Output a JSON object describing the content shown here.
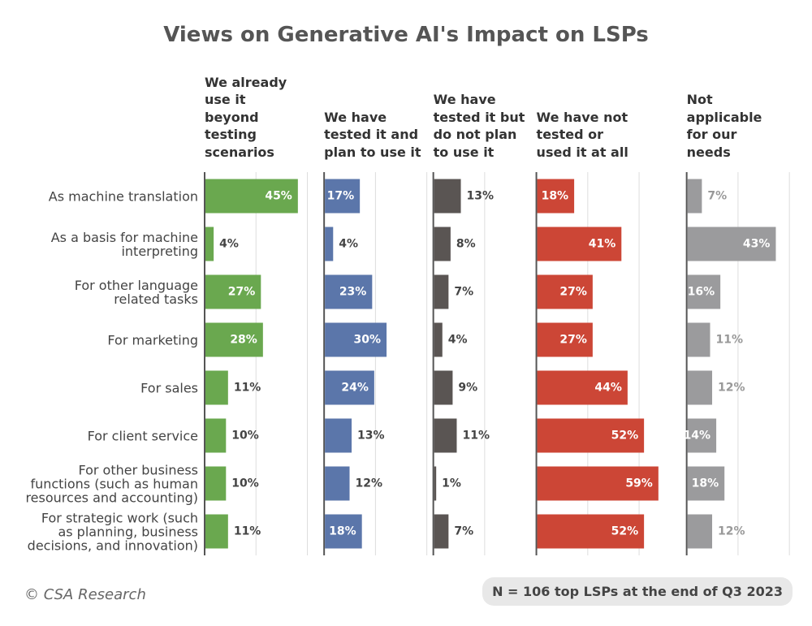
{
  "chart_data": {
    "type": "bar",
    "orientation": "horizontal",
    "title": "Views on Generative AI's Impact on LSPs",
    "categories": [
      "As machine translation",
      "As a basis for machine\ninterpreting",
      "For other language\nrelated tasks",
      "For marketing",
      "For sales",
      "For client service",
      "For other business\nfunctions (such as human\nresources and accounting)",
      "For strategic work (such\nas planning, business\ndecisions, and innovation)"
    ],
    "xticks": [
      0,
      25,
      50
    ],
    "grid": true,
    "series": [
      {
        "name": "We already\nuse it\nbeyond\ntesting\nscenarios",
        "color": "#6aa84f",
        "xlim": [
          0,
          55
        ],
        "values": [
          45,
          4,
          27,
          28,
          11,
          10,
          10,
          11
        ],
        "value_labels": [
          "45%",
          "4%",
          "27%",
          "28%",
          "11%",
          "10%",
          "10%",
          "11%"
        ]
      },
      {
        "name": "We have\ntested it and\nplan to use it",
        "color": "#5b76aa",
        "xlim": [
          0,
          50
        ],
        "values": [
          17,
          4,
          23,
          30,
          24,
          13,
          12,
          18
        ],
        "value_labels": [
          "17%",
          "4%",
          "23%",
          "30%",
          "24%",
          "13%",
          "12%",
          "18%"
        ]
      },
      {
        "name": "We have\ntested it but\ndo not plan\nto use it",
        "color": "#5a5553",
        "xlim": [
          0,
          47
        ],
        "values": [
          13,
          8,
          7,
          4,
          9,
          11,
          1,
          7
        ],
        "value_labels": [
          "13%",
          "8%",
          "7%",
          "4%",
          "9%",
          "11%",
          "1%",
          "7%"
        ]
      },
      {
        "name": "We have not\ntested or\nused it at all",
        "color": "#cc4636",
        "xlim": [
          0,
          70
        ],
        "values": [
          18,
          41,
          27,
          27,
          44,
          52,
          59,
          52
        ],
        "value_labels": [
          "18%",
          "41%",
          "27%",
          "27%",
          "44%",
          "52%",
          "59%",
          "52%"
        ]
      },
      {
        "name": "Not\napplicable\nfor our\nneeds",
        "color": "#9b9b9d",
        "xlim": [
          0,
          50
        ],
        "values": [
          7,
          43,
          16,
          11,
          12,
          14,
          18,
          12
        ],
        "value_labels": [
          "7%",
          "43%",
          "16%",
          "11%",
          "12%",
          "14%",
          "18%",
          "12%"
        ]
      }
    ],
    "source": "© CSA Research",
    "note": "N = 106 top LSPs at the end of Q3 2023"
  }
}
